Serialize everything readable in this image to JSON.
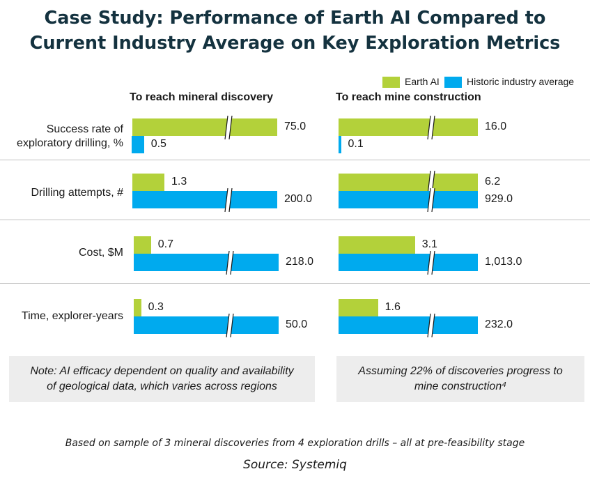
{
  "chart_data": {
    "type": "bar",
    "orientation": "horizontal",
    "title_line1": "Case Study: Performance of Earth AI Compared to",
    "title_line2": "Current Industry Average on Key Exploration Metrics",
    "series": [
      {
        "name": "Earth AI",
        "color": "#b3d13a"
      },
      {
        "name": "Historic industry average",
        "color": "#00aaee"
      }
    ],
    "legend_position": "top-right",
    "axis_breaks": true,
    "categories": [
      {
        "label_lines": [
          "Success rate of",
          "exploratory drilling, %"
        ]
      },
      {
        "label_lines": [
          "Drilling attempts, #"
        ]
      },
      {
        "label_lines": [
          "Cost, $M"
        ]
      },
      {
        "label_lines": [
          "Time, explorer-years"
        ]
      }
    ],
    "panels": [
      {
        "title": "To reach mineral discovery",
        "earth_ai": [
          75.0,
          1.3,
          0.7,
          0.3
        ],
        "historic": [
          0.5,
          200.0,
          218.0,
          50.0
        ],
        "earth_ai_labels": [
          "75.0",
          "1.3",
          "0.7",
          "0.3"
        ],
        "historic_labels": [
          "0.5",
          "200.0",
          "218.0",
          "50.0"
        ],
        "note_lines": [
          "Note: AI efficacy dependent on quality and availability",
          "of geological data, which varies across regions"
        ]
      },
      {
        "title": "To reach mine construction",
        "earth_ai": [
          16.0,
          6.2,
          3.1,
          1.6
        ],
        "historic": [
          0.1,
          929.0,
          1013.0,
          232.0
        ],
        "earth_ai_labels": [
          "16.0",
          "6.2",
          "3.1",
          "1.6"
        ],
        "historic_labels": [
          "0.1",
          "929.0",
          "1,013.0",
          "232.0"
        ],
        "note_lines": [
          "Assuming 22% of discoveries progress to",
          "mine construction⁴"
        ]
      }
    ]
  },
  "footnote": "Based on sample of 3 mineral discoveries from 4 exploration drills – all at pre-feasibility stage",
  "source": "Source: Systemiq"
}
